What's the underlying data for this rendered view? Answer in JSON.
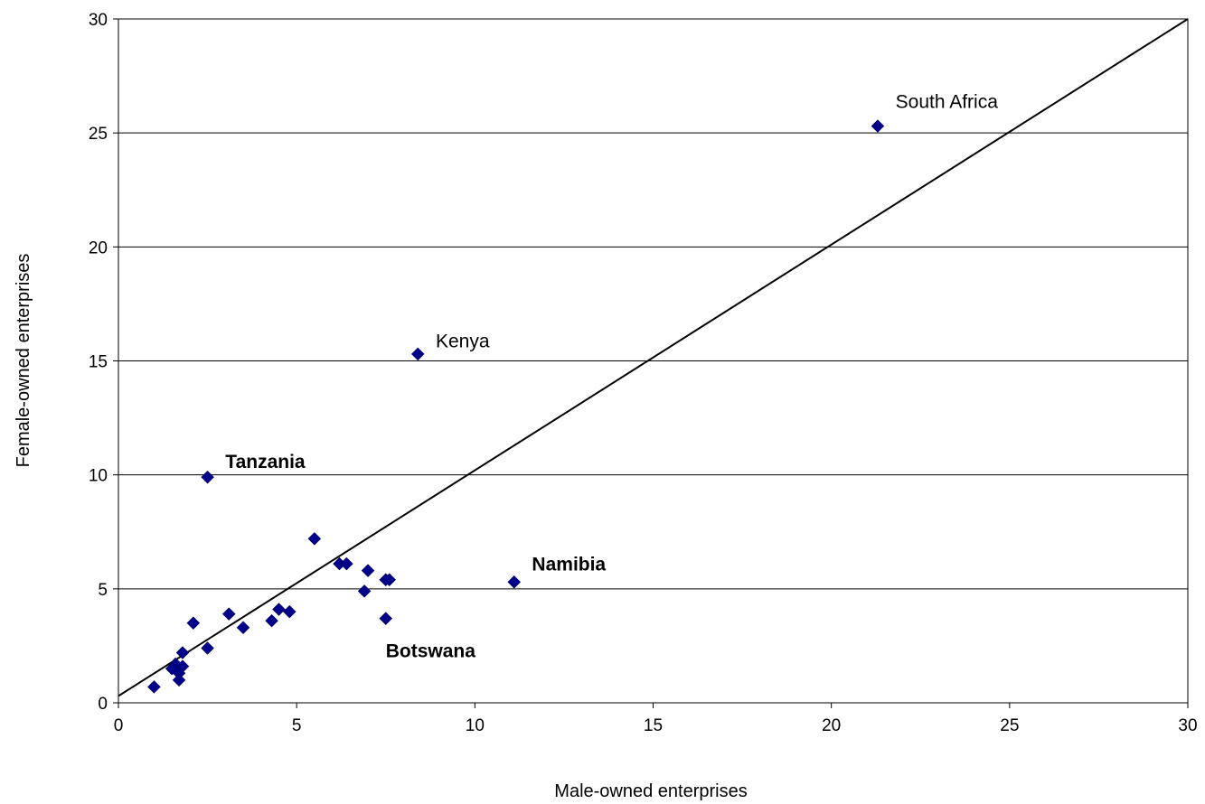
{
  "chart_data": {
    "type": "scatter",
    "title": "",
    "xlabel": "Male-owned enterprises",
    "ylabel": "Female-owned enterprises",
    "xlim": [
      0,
      30
    ],
    "ylim": [
      0,
      30
    ],
    "xticks": [
      "0",
      "5",
      "10",
      "15",
      "20",
      "25",
      "30"
    ],
    "yticks": [
      "0",
      "5",
      "10",
      "15",
      "20",
      "25",
      "30"
    ],
    "grid": "horizontal",
    "legend": "none",
    "marker_color": "#00008B",
    "reference_line": {
      "x": [
        0,
        30
      ],
      "y": [
        0.3,
        30
      ]
    },
    "points": [
      {
        "x": 21.3,
        "y": 25.3
      },
      {
        "x": 8.4,
        "y": 15.3
      },
      {
        "x": 2.5,
        "y": 9.9
      },
      {
        "x": 11.1,
        "y": 5.3
      },
      {
        "x": 5.5,
        "y": 7.2
      },
      {
        "x": 6.2,
        "y": 6.1
      },
      {
        "x": 6.4,
        "y": 6.1
      },
      {
        "x": 7.0,
        "y": 5.8
      },
      {
        "x": 7.5,
        "y": 5.4
      },
      {
        "x": 7.6,
        "y": 5.4
      },
      {
        "x": 6.9,
        "y": 4.9
      },
      {
        "x": 7.5,
        "y": 3.7
      },
      {
        "x": 4.5,
        "y": 4.1
      },
      {
        "x": 4.8,
        "y": 4.0
      },
      {
        "x": 4.3,
        "y": 3.6
      },
      {
        "x": 3.1,
        "y": 3.9
      },
      {
        "x": 3.5,
        "y": 3.3
      },
      {
        "x": 2.1,
        "y": 3.5
      },
      {
        "x": 2.5,
        "y": 2.4
      },
      {
        "x": 1.8,
        "y": 2.2
      },
      {
        "x": 1.6,
        "y": 1.7
      },
      {
        "x": 1.5,
        "y": 1.5
      },
      {
        "x": 1.8,
        "y": 1.6
      },
      {
        "x": 1.7,
        "y": 1.3
      },
      {
        "x": 1.7,
        "y": 1.0
      },
      {
        "x": 1.0,
        "y": 0.7
      }
    ],
    "annotations": [
      {
        "text": "South Africa",
        "bold": false,
        "x": 21.8,
        "y": 26.1
      },
      {
        "text": "Kenya",
        "bold": false,
        "x": 8.9,
        "y": 15.6
      },
      {
        "text": "Tanzania",
        "bold": true,
        "x": 3.0,
        "y": 10.3
      },
      {
        "text": "Namibia",
        "bold": true,
        "x": 11.6,
        "y": 5.8
      },
      {
        "text": "Botswana",
        "bold": true,
        "x": 7.5,
        "y": 2.0
      }
    ]
  }
}
